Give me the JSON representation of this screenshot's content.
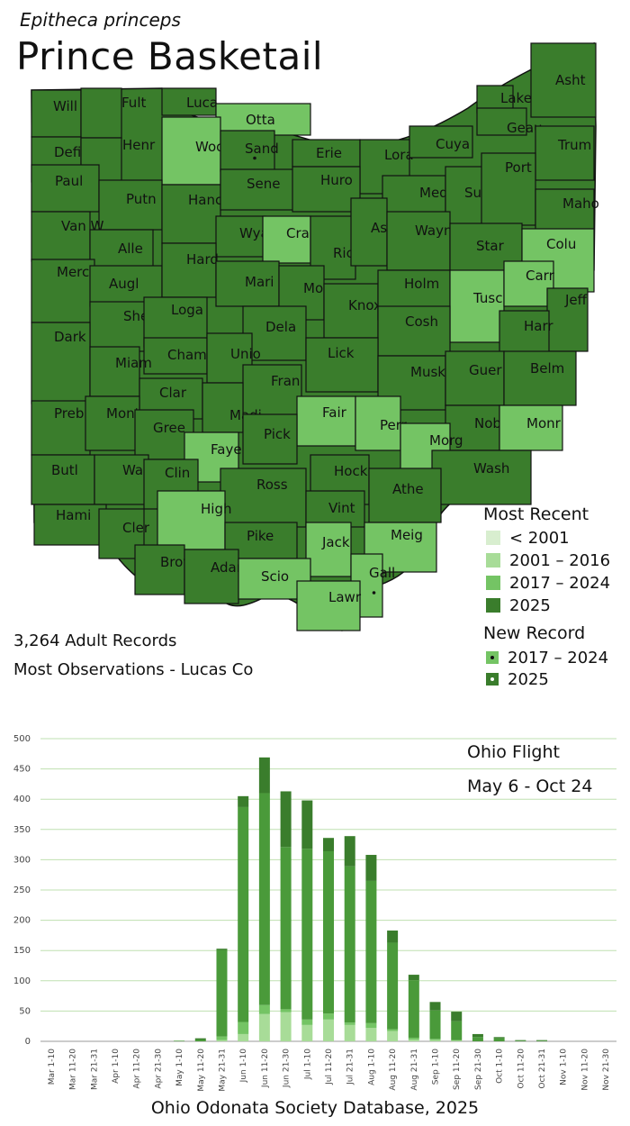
{
  "scientific_name": "Epitheca princeps",
  "common_name": "Prince Basketail",
  "legend": {
    "most_recent_title": "Most Recent",
    "most_recent": [
      {
        "label": "< 2001",
        "color": "#d8eecf"
      },
      {
        "label": "2001 – 2016",
        "color": "#a8dc98"
      },
      {
        "label": "2017 – 2024",
        "color": "#74c464"
      },
      {
        "label": "2025",
        "color": "#3a7d2c"
      }
    ],
    "new_record_title": "New Record",
    "new_record": [
      {
        "label": "2017 – 2024",
        "color": "#74c464"
      },
      {
        "label": "2025",
        "color": "#3a7d2c"
      }
    ]
  },
  "stats": {
    "records": "3,264 Adult Records",
    "most_obs": "Most Observations - Lucas Co"
  },
  "counties": [
    {
      "name": "Will",
      "status": "2025"
    },
    {
      "name": "Fult",
      "status": "2025"
    },
    {
      "name": "Luca",
      "status": "2025"
    },
    {
      "name": "Otta",
      "status": "2017 – 2024"
    },
    {
      "name": "Lake",
      "status": "2025"
    },
    {
      "name": "Asht",
      "status": "2025"
    },
    {
      "name": "Defi",
      "status": "2025"
    },
    {
      "name": "Henr",
      "status": "2025"
    },
    {
      "name": "Wood",
      "status": "2017 – 2024"
    },
    {
      "name": "Sand",
      "status": "2025",
      "new_record": "2025"
    },
    {
      "name": "Erie",
      "status": "2025"
    },
    {
      "name": "Lora",
      "status": "2025"
    },
    {
      "name": "Cuya",
      "status": "2025"
    },
    {
      "name": "Geau",
      "status": "2025"
    },
    {
      "name": "Trum",
      "status": "2025"
    },
    {
      "name": "Paul",
      "status": "2025"
    },
    {
      "name": "Putn",
      "status": "2025"
    },
    {
      "name": "Hanc",
      "status": "2025"
    },
    {
      "name": "Sene",
      "status": "2025"
    },
    {
      "name": "Huro",
      "status": "2025"
    },
    {
      "name": "Medi",
      "status": "2025"
    },
    {
      "name": "Summ",
      "status": "2025"
    },
    {
      "name": "Port",
      "status": "2025"
    },
    {
      "name": "Maho",
      "status": "2025"
    },
    {
      "name": "Van W",
      "status": "2025"
    },
    {
      "name": "Alle",
      "status": "2025"
    },
    {
      "name": "Wyan",
      "status": "2025"
    },
    {
      "name": "Craw",
      "status": "2017 – 2024"
    },
    {
      "name": "Rich",
      "status": "2025"
    },
    {
      "name": "Ashl",
      "status": "2025"
    },
    {
      "name": "Wayn",
      "status": "2025"
    },
    {
      "name": "Star",
      "status": "2025"
    },
    {
      "name": "Colu",
      "status": "2017 – 2024"
    },
    {
      "name": "Merc",
      "status": "2025"
    },
    {
      "name": "Augl",
      "status": "2025"
    },
    {
      "name": "Hard",
      "status": "2025"
    },
    {
      "name": "Mari",
      "status": "2025"
    },
    {
      "name": "Morr",
      "status": "2025"
    },
    {
      "name": "Knox",
      "status": "2025"
    },
    {
      "name": "Holm",
      "status": "2025"
    },
    {
      "name": "Tusc",
      "status": "2017 – 2024"
    },
    {
      "name": "Carr",
      "status": "2017 – 2024"
    },
    {
      "name": "Jeff",
      "status": "2025"
    },
    {
      "name": "Shel",
      "status": "2025"
    },
    {
      "name": "Loga",
      "status": "2025"
    },
    {
      "name": "Dela",
      "status": "2025"
    },
    {
      "name": "Cosh",
      "status": "2025"
    },
    {
      "name": "Harr",
      "status": "2025"
    },
    {
      "name": "Dark",
      "status": "2025"
    },
    {
      "name": "Cham",
      "status": "2025"
    },
    {
      "name": "Unio",
      "status": "2025"
    },
    {
      "name": "Lick",
      "status": "2025"
    },
    {
      "name": "Miam",
      "status": "2025"
    },
    {
      "name": "Musk",
      "status": "2025"
    },
    {
      "name": "Guer",
      "status": "2025"
    },
    {
      "name": "Belm",
      "status": "2025"
    },
    {
      "name": "Clar",
      "status": "2025"
    },
    {
      "name": "Fran",
      "status": "2025"
    },
    {
      "name": "Preb",
      "status": "2025"
    },
    {
      "name": "Mont",
      "status": "2025"
    },
    {
      "name": "Madi",
      "status": "2025"
    },
    {
      "name": "Fair",
      "status": "2017 – 2024"
    },
    {
      "name": "Perr",
      "status": "2017 – 2024"
    },
    {
      "name": "Gree",
      "status": "2025"
    },
    {
      "name": "Nobl",
      "status": "2025"
    },
    {
      "name": "Monr",
      "status": "2017 – 2024"
    },
    {
      "name": "Pick",
      "status": "2025"
    },
    {
      "name": "Morg",
      "status": "2017 – 2024"
    },
    {
      "name": "Faye",
      "status": "2017 – 2024"
    },
    {
      "name": "Butl",
      "status": "2025"
    },
    {
      "name": "Warr",
      "status": "2025"
    },
    {
      "name": "Clin",
      "status": "2025"
    },
    {
      "name": "Hock",
      "status": "2025"
    },
    {
      "name": "Wash",
      "status": "2025"
    },
    {
      "name": "Ross",
      "status": "2025"
    },
    {
      "name": "Athe",
      "status": "2025"
    },
    {
      "name": "Hami",
      "status": "2025"
    },
    {
      "name": "High",
      "status": "2017 – 2024"
    },
    {
      "name": "Vint",
      "status": "2025"
    },
    {
      "name": "Cler",
      "status": "2025"
    },
    {
      "name": "Pike",
      "status": "2025"
    },
    {
      "name": "Jack",
      "status": "2017 – 2024"
    },
    {
      "name": "Meig",
      "status": "2017 – 2024"
    },
    {
      "name": "Brow",
      "status": "2025"
    },
    {
      "name": "Adam",
      "status": "2025"
    },
    {
      "name": "Scio",
      "status": "2017 – 2024"
    },
    {
      "name": "Gall",
      "status": "2017 – 2024",
      "new_record": "2025"
    },
    {
      "name": "Lawr",
      "status": "2017 – 2024"
    }
  ],
  "chart_data": {
    "type": "bar",
    "stacked": true,
    "categories": [
      "Mar 1-10",
      "Mar 11-20",
      "Mar 21-31",
      "Apr 1-10",
      "Apr 11-20",
      "Apr 21-30",
      "May 1-10",
      "May 11-20",
      "May 21-31",
      "Jun 1-10",
      "Jun 11-20",
      "Jun 21-30",
      "Jul 1-10",
      "Jul 11-20",
      "Jul 21-31",
      "Aug 1-10",
      "Aug 11-20",
      "Aug 21-31",
      "Sep 1-10",
      "Sep 11-20",
      "Sep 21-30",
      "Oct 1-10",
      "Oct 11-20",
      "Oct 21-31",
      "Nov 1-10",
      "Nov 11-20",
      "Nov 21-30"
    ],
    "series": [
      {
        "color": "#a8dc98",
        "values": [
          0,
          0,
          0,
          0,
          0,
          0,
          0,
          0,
          2,
          12,
          45,
          48,
          27,
          36,
          27,
          22,
          17,
          3,
          2,
          1,
          0,
          0,
          0,
          0,
          0,
          0,
          0
        ]
      },
      {
        "color": "#74c464",
        "values": [
          0,
          0,
          0,
          0,
          0,
          0,
          0,
          0,
          6,
          20,
          15,
          5,
          9,
          10,
          4,
          8,
          3,
          3,
          2,
          1,
          0,
          0,
          0,
          0,
          0,
          0,
          0
        ]
      },
      {
        "color": "#4a9a3a",
        "values": [
          0,
          0,
          0,
          0,
          0,
          0,
          1,
          3,
          143,
          355,
          350,
          268,
          282,
          268,
          258,
          235,
          143,
          95,
          47,
          31,
          7,
          5,
          1,
          1,
          0,
          0,
          0
        ]
      },
      {
        "color": "#3a7d2c",
        "values": [
          0,
          0,
          0,
          0,
          0,
          0,
          0,
          2,
          2,
          18,
          59,
          92,
          80,
          22,
          50,
          43,
          20,
          9,
          14,
          16,
          5,
          2,
          1,
          1,
          0,
          0,
          0
        ]
      }
    ],
    "ylim": [
      0,
      500
    ],
    "yticks": [
      0,
      50,
      100,
      150,
      200,
      250,
      300,
      350,
      400,
      450,
      500
    ],
    "grid": true,
    "annotations": [
      "Ohio Flight",
      "May 6 - Oct 24"
    ]
  },
  "footer": "Ohio Odonata Society Database, 2025"
}
